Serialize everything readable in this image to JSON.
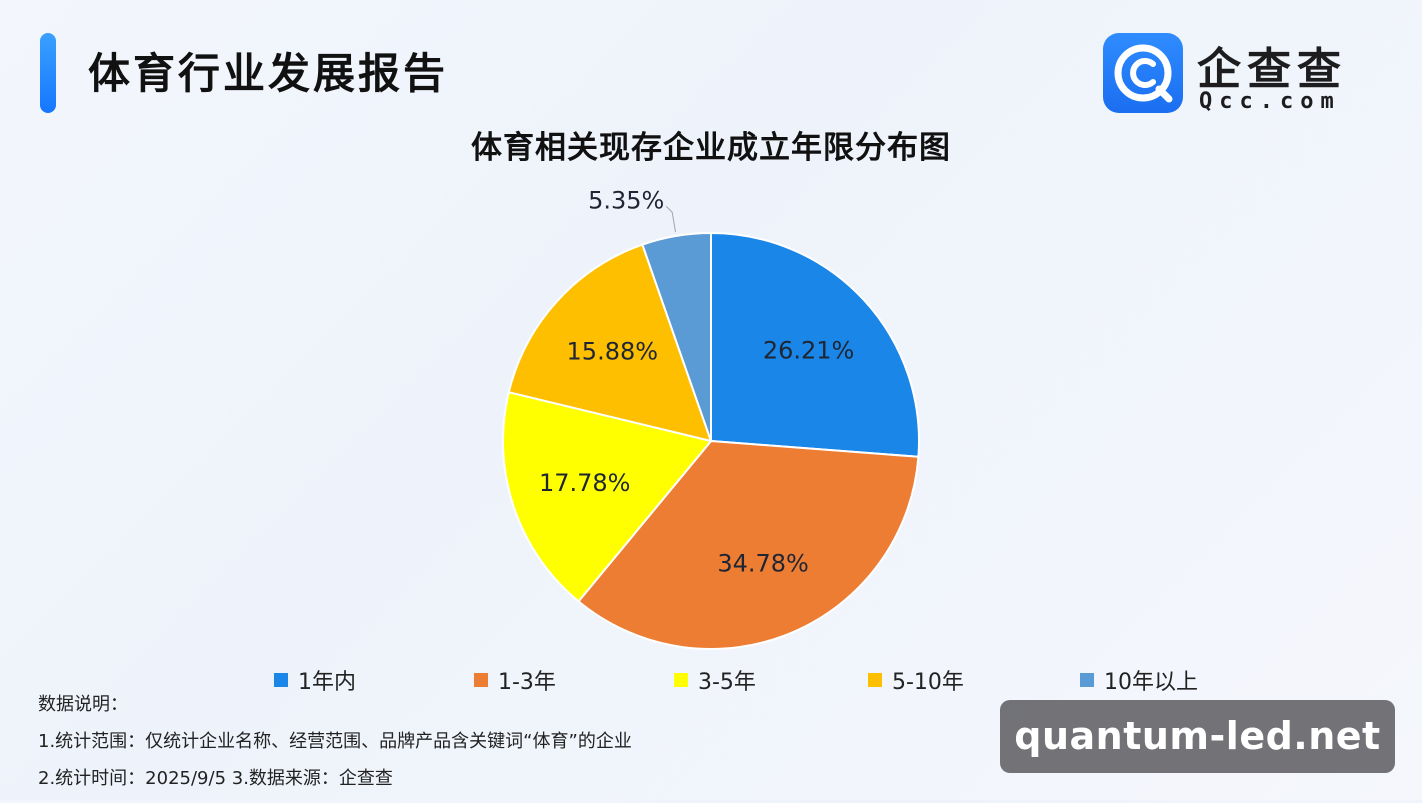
{
  "header": {
    "title": "体育行业发展报告",
    "logo_name": "企查查",
    "logo_domain": "Qcc.com"
  },
  "chart_data": {
    "type": "pie",
    "title": "体育相关现存企业成立年限分布图",
    "categories": [
      "1年内",
      "1-3年",
      "3-5年",
      "5-10年",
      "10年以上"
    ],
    "values": [
      26.21,
      34.78,
      17.78,
      15.88,
      5.35
    ],
    "labels": [
      "26.21%",
      "34.78%",
      "17.78%",
      "15.88%",
      "5.35%"
    ],
    "colors": [
      "#1a86e8",
      "#ee7d34",
      "#ffff00",
      "#fdbf00",
      "#5b9bd5"
    ],
    "start_angle": "12 o'clock",
    "direction": "clockwise",
    "legend_position": "bottom"
  },
  "notes": {
    "heading": "数据说明：",
    "line1": "1.统计范围：仅统计企业名称、经营范围、品牌产品含关键词“体育”的企业",
    "line2": " 2.统计时间：2025/9/5  3.数据来源：企查查"
  },
  "watermark": "quantum-led.net"
}
